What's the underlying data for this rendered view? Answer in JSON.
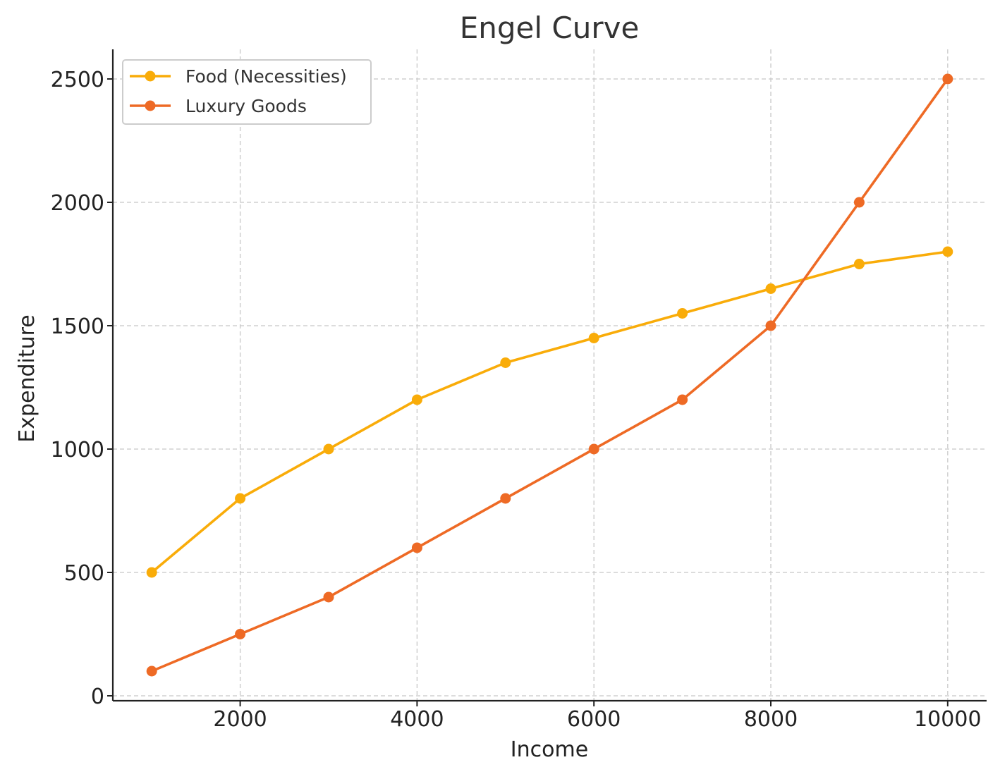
{
  "chart_data": {
    "type": "line",
    "title": "Engel Curve",
    "xlabel": "Income",
    "ylabel": "Expenditure",
    "x": [
      1000,
      2000,
      3000,
      4000,
      5000,
      6000,
      7000,
      8000,
      9000,
      10000
    ],
    "xlim": [
      560,
      10440
    ],
    "ylim": [
      -20,
      2620
    ],
    "xticks": [
      2000,
      4000,
      6000,
      8000,
      10000
    ],
    "yticks": [
      0,
      500,
      1000,
      1500,
      2000,
      2500
    ],
    "grid": true,
    "legend_position": "top-left",
    "series": [
      {
        "name": "Food (Necessities)",
        "color": "#F9AC09",
        "marker": "circle",
        "values": [
          500,
          800,
          1000,
          1200,
          1350,
          1450,
          1550,
          1650,
          1750,
          1800
        ]
      },
      {
        "name": "Luxury Goods",
        "color": "#EE6A25",
        "marker": "circle",
        "values": [
          100,
          250,
          400,
          600,
          800,
          1000,
          1200,
          1500,
          2000,
          2500
        ]
      }
    ]
  }
}
